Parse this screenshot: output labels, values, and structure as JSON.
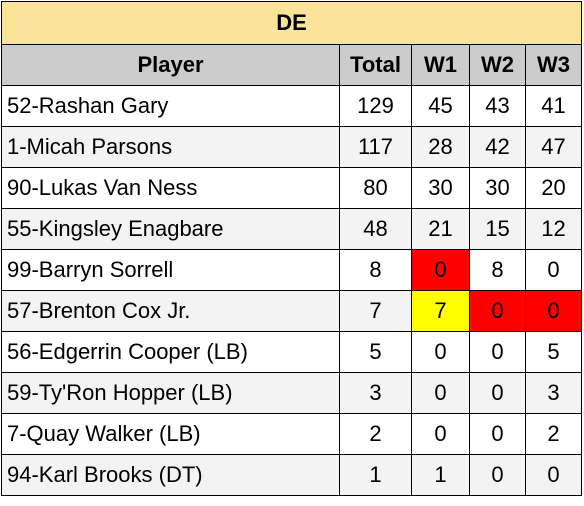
{
  "table": {
    "title": "DE",
    "headers": [
      "Player",
      "Total",
      "W1",
      "W2",
      "W3"
    ],
    "colors": {
      "title_bg": "#fbe39a",
      "header_bg": "#cccccc",
      "alt_row_bg": "#f3f3f3",
      "highlight_red": "#ff0000",
      "highlight_yellow": "#ffff00"
    },
    "rows": [
      {
        "player": "52-Rashan Gary",
        "total": "129",
        "w1": "45",
        "w2": "43",
        "w3": "41",
        "hl": {}
      },
      {
        "player": "1-Micah Parsons",
        "total": "117",
        "w1": "28",
        "w2": "42",
        "w3": "47",
        "hl": {}
      },
      {
        "player": "90-Lukas Van Ness",
        "total": "80",
        "w1": "30",
        "w2": "30",
        "w3": "20",
        "hl": {}
      },
      {
        "player": "55-Kingsley Enagbare",
        "total": "48",
        "w1": "21",
        "w2": "15",
        "w3": "12",
        "hl": {}
      },
      {
        "player": "99-Barryn Sorrell",
        "total": "8",
        "w1": "0",
        "w2": "8",
        "w3": "0",
        "hl": {
          "w1": "red"
        }
      },
      {
        "player": "57-Brenton Cox Jr.",
        "total": "7",
        "w1": "7",
        "w2": "0",
        "w3": "0",
        "hl": {
          "w1": "yellow",
          "w2": "red",
          "w3": "red"
        }
      },
      {
        "player": "56-Edgerrin Cooper (LB)",
        "total": "5",
        "w1": "0",
        "w2": "0",
        "w3": "5",
        "hl": {}
      },
      {
        "player": "59-Ty'Ron Hopper (LB)",
        "total": "3",
        "w1": "0",
        "w2": "0",
        "w3": "3",
        "hl": {}
      },
      {
        "player": "7-Quay Walker (LB)",
        "total": "2",
        "w1": "0",
        "w2": "0",
        "w3": "2",
        "hl": {}
      },
      {
        "player": "94-Karl Brooks (DT)",
        "total": "1",
        "w1": "1",
        "w2": "0",
        "w3": "0",
        "hl": {}
      }
    ]
  }
}
